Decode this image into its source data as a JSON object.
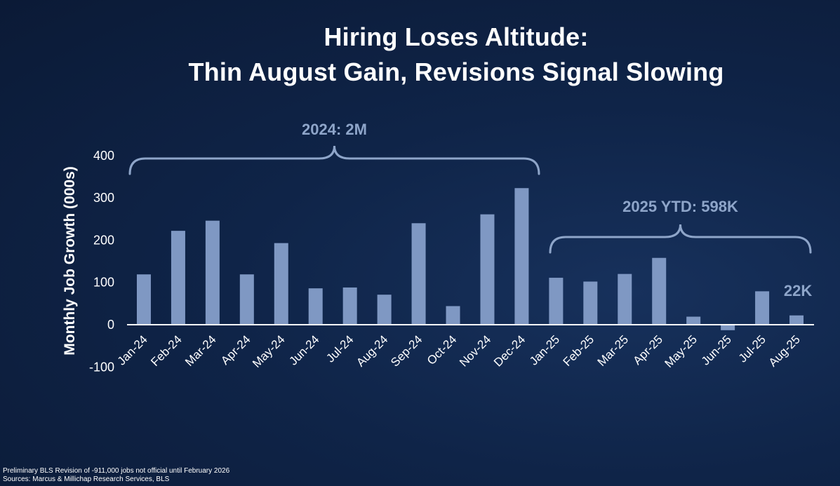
{
  "title_line1": "Hiring Loses Altitude:",
  "title_line2": "Thin August Gain, Revisions Signal Slowing",
  "footnotes": {
    "line1": "Preliminary BLS Revision of -911,000 jobs not official until February 2026",
    "line2": "Sources: Marcus & Millichap Research Services, BLS"
  },
  "colors": {
    "bar": "#7f98c3",
    "annotation": "#8ea5c9",
    "text": "#ffffff"
  },
  "chart_data": {
    "type": "bar",
    "title": "Hiring Loses Altitude: Thin August Gain, Revisions Signal Slowing",
    "xlabel": "",
    "ylabel": "Monthly Job Growth (000s)",
    "ylim": [
      -100,
      400
    ],
    "yticks": [
      400,
      300,
      200,
      100,
      0,
      -100
    ],
    "categories": [
      "Jan-24",
      "Feb-24",
      "Mar-24",
      "Apr-24",
      "May-24",
      "Jun-24",
      "Jul-24",
      "Aug-24",
      "Sep-24",
      "Oct-24",
      "Nov-24",
      "Dec-24",
      "Jan-25",
      "Feb-25",
      "Mar-25",
      "Apr-25",
      "May-25",
      "Jun-25",
      "Jul-25",
      "Aug-25"
    ],
    "values": [
      119,
      222,
      246,
      119,
      193,
      86,
      88,
      71,
      240,
      44,
      261,
      323,
      111,
      102,
      120,
      158,
      19,
      -13,
      79,
      22
    ],
    "annotations": [
      {
        "label": "2024: 2M",
        "from_category": "Jan-24",
        "to_category": "Dec-24"
      },
      {
        "label": "2025 YTD: 598K",
        "from_category": "Jan-25",
        "to_category": "Aug-25"
      }
    ],
    "bar_labels": [
      {
        "category": "Aug-25",
        "label": "22K"
      }
    ],
    "grid": false
  }
}
